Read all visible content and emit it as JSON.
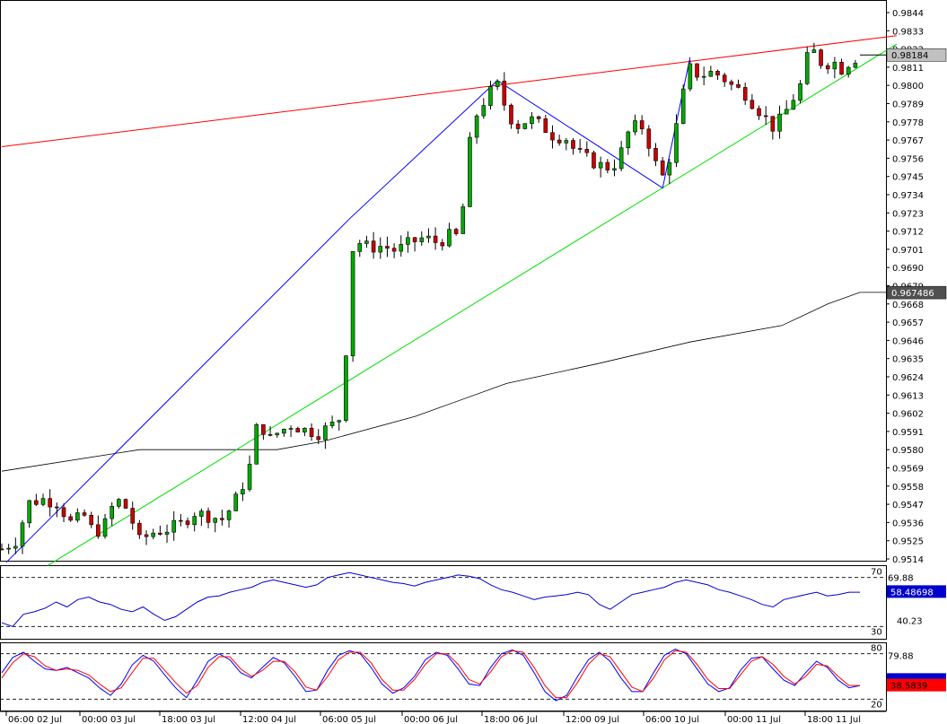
{
  "chart_data": [
    {
      "type": "candlestick",
      "panel": "price",
      "ylim": [
        0.9505,
        0.985
      ],
      "y_ticks": [
        "0.9844",
        "0.9833",
        "0.9822",
        "0.9811",
        "0.9800",
        "0.9789",
        "0.9778",
        "0.9767",
        "0.9756",
        "0.9745",
        "0.9734",
        "0.9723",
        "0.9712",
        "0.9701",
        "0.9690",
        "0.9679",
        "0.9668",
        "0.9657",
        "0.9646",
        "0.9635",
        "0.9624",
        "0.9613",
        "0.9602",
        "0.9591",
        "0.9580",
        "0.9569",
        "0.9558",
        "0.9547",
        "0.9536",
        "0.9525",
        "0.9514"
      ],
      "x_labels": [
        "06:00 02 Jul",
        "00:00 03 Jul",
        "18:00 03 Jul",
        "12:00 04 Jul",
        "06:00 05 Jul",
        "00:00 06 Jul",
        "18:00 06 Jul",
        "12:00 09 Jul",
        "06:00 10 Jul",
        "00:00 11 Jul",
        "18:00 11 Jul"
      ],
      "close_path": [
        [
          0,
          0.952
        ],
        [
          6,
          0.9525
        ],
        [
          12,
          0.9548
        ],
        [
          18,
          0.955
        ],
        [
          24,
          0.9548
        ],
        [
          30,
          0.9536
        ],
        [
          36,
          0.954
        ],
        [
          40,
          0.953
        ],
        [
          44,
          0.9532
        ],
        [
          48,
          0.9545
        ],
        [
          52,
          0.955
        ],
        [
          56,
          0.954
        ],
        [
          60,
          0.9525
        ],
        [
          66,
          0.953
        ],
        [
          72,
          0.9532
        ],
        [
          78,
          0.9535
        ],
        [
          84,
          0.9542
        ],
        [
          90,
          0.954
        ],
        [
          96,
          0.9538
        ],
        [
          100,
          0.9545
        ],
        [
          104,
          0.9555
        ],
        [
          108,
          0.957
        ],
        [
          112,
          0.96
        ],
        [
          116,
          0.9585
        ],
        [
          120,
          0.959
        ],
        [
          126,
          0.9595
        ],
        [
          132,
          0.9592
        ],
        [
          138,
          0.959
        ],
        [
          144,
          0.9595
        ],
        [
          148,
          0.96
        ],
        [
          150,
          0.964
        ],
        [
          152,
          0.97
        ],
        [
          156,
          0.9705
        ],
        [
          160,
          0.9702
        ],
        [
          166,
          0.9703
        ],
        [
          172,
          0.97
        ],
        [
          178,
          0.9705
        ],
        [
          184,
          0.9708
        ],
        [
          190,
          0.9705
        ],
        [
          196,
          0.971
        ],
        [
          200,
          0.9708
        ],
        [
          202,
          0.9745
        ],
        [
          204,
          0.9765
        ],
        [
          206,
          0.978
        ],
        [
          210,
          0.979
        ],
        [
          214,
          0.9798
        ],
        [
          216,
          0.98
        ],
        [
          220,
          0.9785
        ],
        [
          224,
          0.9775
        ],
        [
          230,
          0.978
        ],
        [
          236,
          0.9775
        ],
        [
          240,
          0.977
        ],
        [
          246,
          0.9768
        ],
        [
          250,
          0.976
        ],
        [
          256,
          0.9755
        ],
        [
          260,
          0.9752
        ],
        [
          266,
          0.975
        ],
        [
          270,
          0.976
        ],
        [
          274,
          0.9775
        ],
        [
          280,
          0.9775
        ],
        [
          284,
          0.9755
        ],
        [
          288,
          0.9745
        ],
        [
          292,
          0.976
        ],
        [
          296,
          0.979
        ],
        [
          300,
          0.981
        ],
        [
          304,
          0.9806
        ],
        [
          310,
          0.9808
        ],
        [
          314,
          0.9805
        ],
        [
          318,
          0.98
        ],
        [
          324,
          0.9795
        ],
        [
          330,
          0.9785
        ],
        [
          336,
          0.9775
        ],
        [
          340,
          0.978
        ],
        [
          344,
          0.979
        ],
        [
          348,
          0.98
        ],
        [
          350,
          0.9815
        ],
        [
          354,
          0.982
        ],
        [
          358,
          0.9812
        ],
        [
          362,
          0.9815
        ],
        [
          366,
          0.981
        ],
        [
          370,
          0.9815
        ],
        [
          374,
          0.9818
        ]
      ],
      "moving_average": [
        [
          0,
          0.9567
        ],
        [
          60,
          0.958
        ],
        [
          120,
          0.958
        ],
        [
          140,
          0.9585
        ],
        [
          180,
          0.96
        ],
        [
          220,
          0.962
        ],
        [
          260,
          0.9632
        ],
        [
          300,
          0.9645
        ],
        [
          340,
          0.9655
        ],
        [
          360,
          0.9668
        ],
        [
          374,
          0.9675
        ]
      ],
      "trendlines": [
        {
          "color": "#ff0000",
          "points": [
            [
              0,
              0.9763
            ],
            [
              390,
              0.983
            ]
          ]
        },
        {
          "color": "#00e000",
          "points": [
            [
              20,
              0.951
            ],
            [
              390,
              0.9825
            ]
          ]
        },
        {
          "color": "#0000ff",
          "points": [
            [
              2,
              0.9512
            ],
            [
              152,
              0.972
            ],
            [
              216,
              0.9803
            ],
            [
              288,
              0.9738
            ],
            [
              300,
              0.9817
            ]
          ]
        }
      ],
      "price_labels": [
        {
          "text": "0.98184",
          "value": 0.98184,
          "bg": "#c0c0c0",
          "fg": "#000000"
        },
        {
          "text": "0.967486",
          "value": 0.967486,
          "bg": "#505050",
          "fg": "#ffffff"
        }
      ]
    },
    {
      "type": "line",
      "panel": "rsi",
      "ylim": [
        20,
        80
      ],
      "levels": [
        70,
        30
      ],
      "level_labels": [
        "70",
        "30"
      ],
      "extra_labels": [
        "69.88",
        "40.23"
      ],
      "current_label": {
        "text": "58.48698",
        "bg": "#0000cc",
        "fg": "#ffffff"
      },
      "series": [
        {
          "name": "",
          "color": "#0000cc",
          "values": [
            33,
            30,
            40,
            42,
            45,
            50,
            46,
            52,
            54,
            50,
            48,
            44,
            42,
            46,
            40,
            35,
            38,
            44,
            50,
            54,
            55,
            58,
            60,
            62,
            66,
            68,
            66,
            64,
            62,
            64,
            70,
            72,
            74,
            72,
            70,
            68,
            66,
            65,
            63,
            66,
            68,
            70,
            72,
            71,
            69,
            64,
            60,
            58,
            55,
            52,
            54,
            55,
            56,
            58,
            56,
            48,
            44,
            50,
            56,
            58,
            60,
            62,
            66,
            68,
            66,
            64,
            60,
            58,
            55,
            52,
            48,
            46,
            52,
            54,
            56,
            58,
            55,
            56,
            58,
            58
          ]
        }
      ]
    },
    {
      "type": "line",
      "panel": "stochastic",
      "ylim": [
        5,
        95
      ],
      "levels": [
        80,
        20
      ],
      "level_labels": [
        "80",
        "20"
      ],
      "extra_labels": [
        "79.88"
      ],
      "current_label": {
        "text": "38.5839",
        "bg": "#ff0000",
        "fg": "#000000"
      },
      "series": [
        {
          "name": "",
          "color": "#0000ff",
          "values": [
            55,
            75,
            82,
            70,
            60,
            58,
            62,
            55,
            48,
            35,
            25,
            40,
            65,
            78,
            70,
            52,
            35,
            22,
            45,
            70,
            80,
            72,
            55,
            48,
            62,
            75,
            68,
            50,
            30,
            32,
            58,
            78,
            84,
            80,
            62,
            40,
            28,
            35,
            50,
            72,
            82,
            78,
            60,
            40,
            38,
            62,
            80,
            85,
            78,
            55,
            30,
            18,
            25,
            50,
            72,
            82,
            70,
            48,
            30,
            30,
            55,
            78,
            86,
            80,
            60,
            40,
            30,
            35,
            58,
            74,
            76,
            60,
            45,
            38,
            55,
            70,
            62,
            45,
            35,
            38
          ]
        },
        {
          "name": "",
          "color": "#ff0000",
          "values": [
            48,
            68,
            80,
            76,
            64,
            58,
            60,
            58,
            52,
            40,
            30,
            35,
            55,
            74,
            74,
            58,
            42,
            28,
            38,
            62,
            76,
            76,
            60,
            50,
            58,
            70,
            70,
            56,
            36,
            32,
            50,
            72,
            82,
            82,
            68,
            46,
            32,
            32,
            46,
            66,
            80,
            80,
            66,
            46,
            40,
            56,
            76,
            84,
            82,
            62,
            38,
            22,
            22,
            42,
            66,
            80,
            76,
            56,
            36,
            30,
            48,
            72,
            84,
            82,
            66,
            46,
            34,
            34,
            52,
            70,
            76,
            66,
            50,
            40,
            50,
            66,
            64,
            50,
            38,
            38
          ]
        }
      ]
    }
  ]
}
